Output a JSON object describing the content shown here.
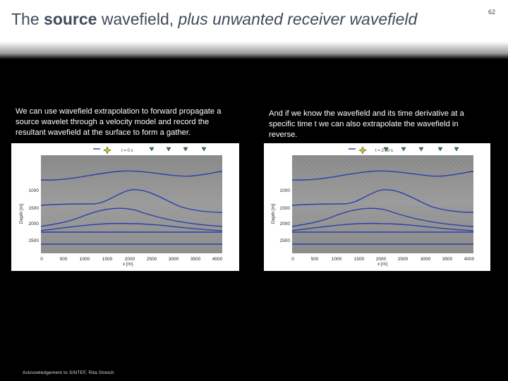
{
  "title": {
    "pre": "The ",
    "bold": "source",
    "mid": " wavefield, ",
    "italic": "plus unwanted receiver wavefield"
  },
  "slide_number": "62",
  "left_caption": "We can use wavefield extrapolation to forward propagate a source wavelet through a velocity model and record the resultant  wavefield at the surface to form a gather.",
  "right_caption": "And if we know the wavefield and its time derivative at a specific time t we can also extrapolate the wavefield in reverse.",
  "acknowledgement": "Acknowledgement to SINTEF, Rita Streich",
  "figure_left": {
    "time_label": "t = 0 s",
    "ylabel": "Depth [m]",
    "xlabel": "x [m]",
    "y_ticks": [
      "1000",
      "1500",
      "2000",
      "2500"
    ],
    "x_ticks": [
      "0",
      "500",
      "1000",
      "1500",
      "2000",
      "2500",
      "3000",
      "3500",
      "4000"
    ]
  },
  "figure_right": {
    "time_label": "t = 2.00 s",
    "ylabel": "Depth [m]",
    "xlabel": "x [m]",
    "y_ticks": [
      "1000",
      "1500",
      "2000",
      "2500"
    ],
    "x_ticks": [
      "0",
      "500",
      "1000",
      "1500",
      "2000",
      "2500",
      "3000",
      "3500",
      "4000"
    ]
  },
  "colors": {
    "title": "#404a5a",
    "horizon": "#2a3fa8",
    "receiver": "#2e8b2e",
    "source": "#d8c800"
  },
  "icons": {
    "source": "star-burst-icon",
    "receiver": "triangle-down-icon"
  }
}
